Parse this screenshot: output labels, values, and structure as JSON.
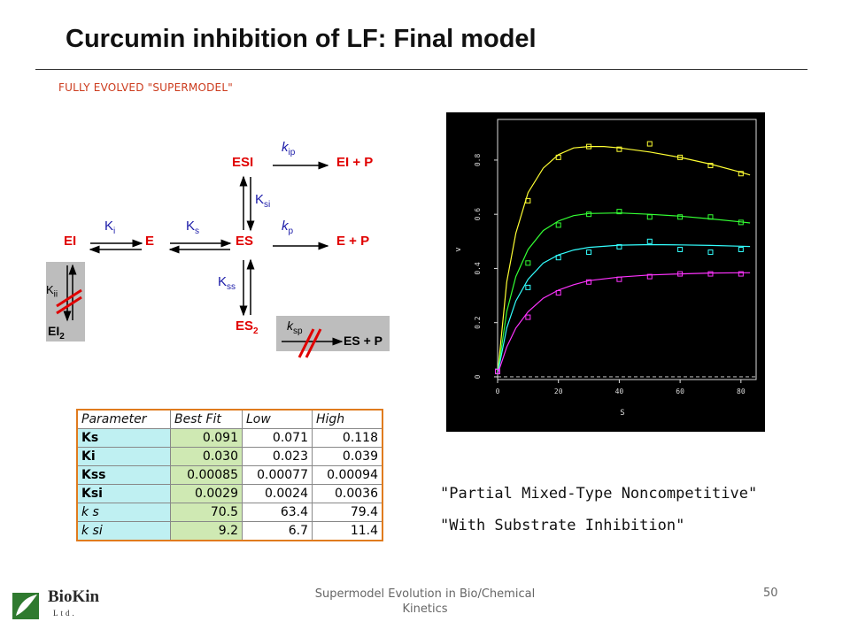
{
  "slide": {
    "title": "Curcumin inhibition of LF: Final model",
    "subtitle": "FULLY EVOLVED \"SUPERMODEL\"",
    "footer": "Supermodel Evolution in Bio/Chemical Kinetics",
    "page_number": "50",
    "quote_line1": "\"Partial Mixed-Type Noncompetitive\"",
    "quote_line2": "\"With Substrate Inhibition\"",
    "logo": {
      "name": "BioKin",
      "sub": "Ltd."
    }
  },
  "scheme": {
    "species": {
      "EI": "EI",
      "E": "E",
      "ES": "ES",
      "ESI": "ESI",
      "ES2": "ES",
      "ES2_sub": "2",
      "EI2": "EI",
      "EI2_sub": "2",
      "EIP": "EI + P",
      "EP": "E + P",
      "ESP": "ES + P"
    },
    "constants": {
      "Ki": "K",
      "Ki_sub": "i",
      "Ks": "K",
      "Ks_sub": "s",
      "Ksi": "K",
      "Ksi_sub": "si",
      "Kss": "K",
      "Kss_sub": "ss",
      "Kii": "K",
      "Kii_sub": "ii",
      "kip": "k",
      "kip_sub": "ip",
      "kp": "k",
      "kp_sub": "p",
      "ksp": "k",
      "ksp_sub": "sp"
    }
  },
  "table": {
    "headers": [
      "Parameter",
      "Best Fit",
      "Low",
      "High"
    ],
    "rows": [
      {
        "name": "Ks",
        "best": "0.091",
        "low": "0.071",
        "high": "0.118",
        "italic": false
      },
      {
        "name": "Ki",
        "best": "0.030",
        "low": "0.023",
        "high": "0.039",
        "italic": false
      },
      {
        "name": "Kss",
        "best": "0.00085",
        "low": "0.00077",
        "high": "0.00094",
        "italic": false
      },
      {
        "name": "Ksi",
        "best": "0.0029",
        "low": "0.0024",
        "high": "0.0036",
        "italic": false
      },
      {
        "name": "k s",
        "best": "70.5",
        "low": "63.4",
        "high": "79.4",
        "italic": true
      },
      {
        "name": "k si",
        "best": "9.2",
        "low": "6.7",
        "high": "11.4",
        "italic": true
      }
    ]
  },
  "chart_data": {
    "type": "scatter",
    "xlabel": "S",
    "ylabel": "v",
    "xlim": [
      0,
      85
    ],
    "ylim": [
      -0.01,
      0.95
    ],
    "x_ticks": [
      0,
      20,
      40,
      60,
      80
    ],
    "y_ticks": [
      0,
      0.2,
      0.4,
      0.6,
      0.8
    ],
    "y_tick_labels": [
      "0",
      "0.2",
      "0.4",
      "0.6",
      "0.8"
    ],
    "x": [
      0,
      10,
      20,
      30,
      40,
      50,
      60,
      70,
      80
    ],
    "series": [
      {
        "color": "#ffff33",
        "values": [
          0.02,
          0.65,
          0.81,
          0.85,
          0.84,
          0.86,
          0.81,
          0.78,
          0.75
        ],
        "fit": [
          [
            0,
            0.01
          ],
          [
            3,
            0.35
          ],
          [
            6,
            0.53
          ],
          [
            10,
            0.68
          ],
          [
            15,
            0.77
          ],
          [
            20,
            0.82
          ],
          [
            25,
            0.845
          ],
          [
            30,
            0.85
          ],
          [
            35,
            0.85
          ],
          [
            40,
            0.845
          ],
          [
            50,
            0.83
          ],
          [
            60,
            0.81
          ],
          [
            70,
            0.785
          ],
          [
            80,
            0.755
          ],
          [
            83,
            0.745
          ]
        ]
      },
      {
        "color": "#33ff33",
        "values": [
          0.02,
          0.42,
          0.56,
          0.6,
          0.61,
          0.59,
          0.59,
          0.59,
          0.57
        ],
        "fit": [
          [
            0,
            0.01
          ],
          [
            3,
            0.24
          ],
          [
            6,
            0.37
          ],
          [
            10,
            0.47
          ],
          [
            15,
            0.54
          ],
          [
            20,
            0.575
          ],
          [
            25,
            0.595
          ],
          [
            30,
            0.603
          ],
          [
            40,
            0.605
          ],
          [
            50,
            0.6
          ],
          [
            60,
            0.593
          ],
          [
            70,
            0.583
          ],
          [
            80,
            0.572
          ],
          [
            83,
            0.568
          ]
        ]
      },
      {
        "color": "#33ffff",
        "values": [
          0.02,
          0.33,
          0.44,
          0.46,
          0.48,
          0.5,
          0.47,
          0.46,
          0.47
        ],
        "fit": [
          [
            0,
            0.01
          ],
          [
            3,
            0.18
          ],
          [
            6,
            0.28
          ],
          [
            10,
            0.36
          ],
          [
            15,
            0.42
          ],
          [
            20,
            0.45
          ],
          [
            25,
            0.468
          ],
          [
            30,
            0.478
          ],
          [
            40,
            0.486
          ],
          [
            50,
            0.488
          ],
          [
            60,
            0.487
          ],
          [
            70,
            0.485
          ],
          [
            80,
            0.482
          ],
          [
            83,
            0.481
          ]
        ]
      },
      {
        "color": "#ff33ff",
        "values": [
          0.02,
          0.22,
          0.31,
          0.35,
          0.36,
          0.37,
          0.38,
          0.38,
          0.38
        ],
        "fit": [
          [
            0,
            0.01
          ],
          [
            3,
            0.11
          ],
          [
            6,
            0.18
          ],
          [
            10,
            0.24
          ],
          [
            15,
            0.29
          ],
          [
            20,
            0.32
          ],
          [
            25,
            0.34
          ],
          [
            30,
            0.355
          ],
          [
            40,
            0.368
          ],
          [
            50,
            0.376
          ],
          [
            60,
            0.38
          ],
          [
            70,
            0.383
          ],
          [
            80,
            0.384
          ],
          [
            83,
            0.384
          ]
        ]
      }
    ]
  }
}
